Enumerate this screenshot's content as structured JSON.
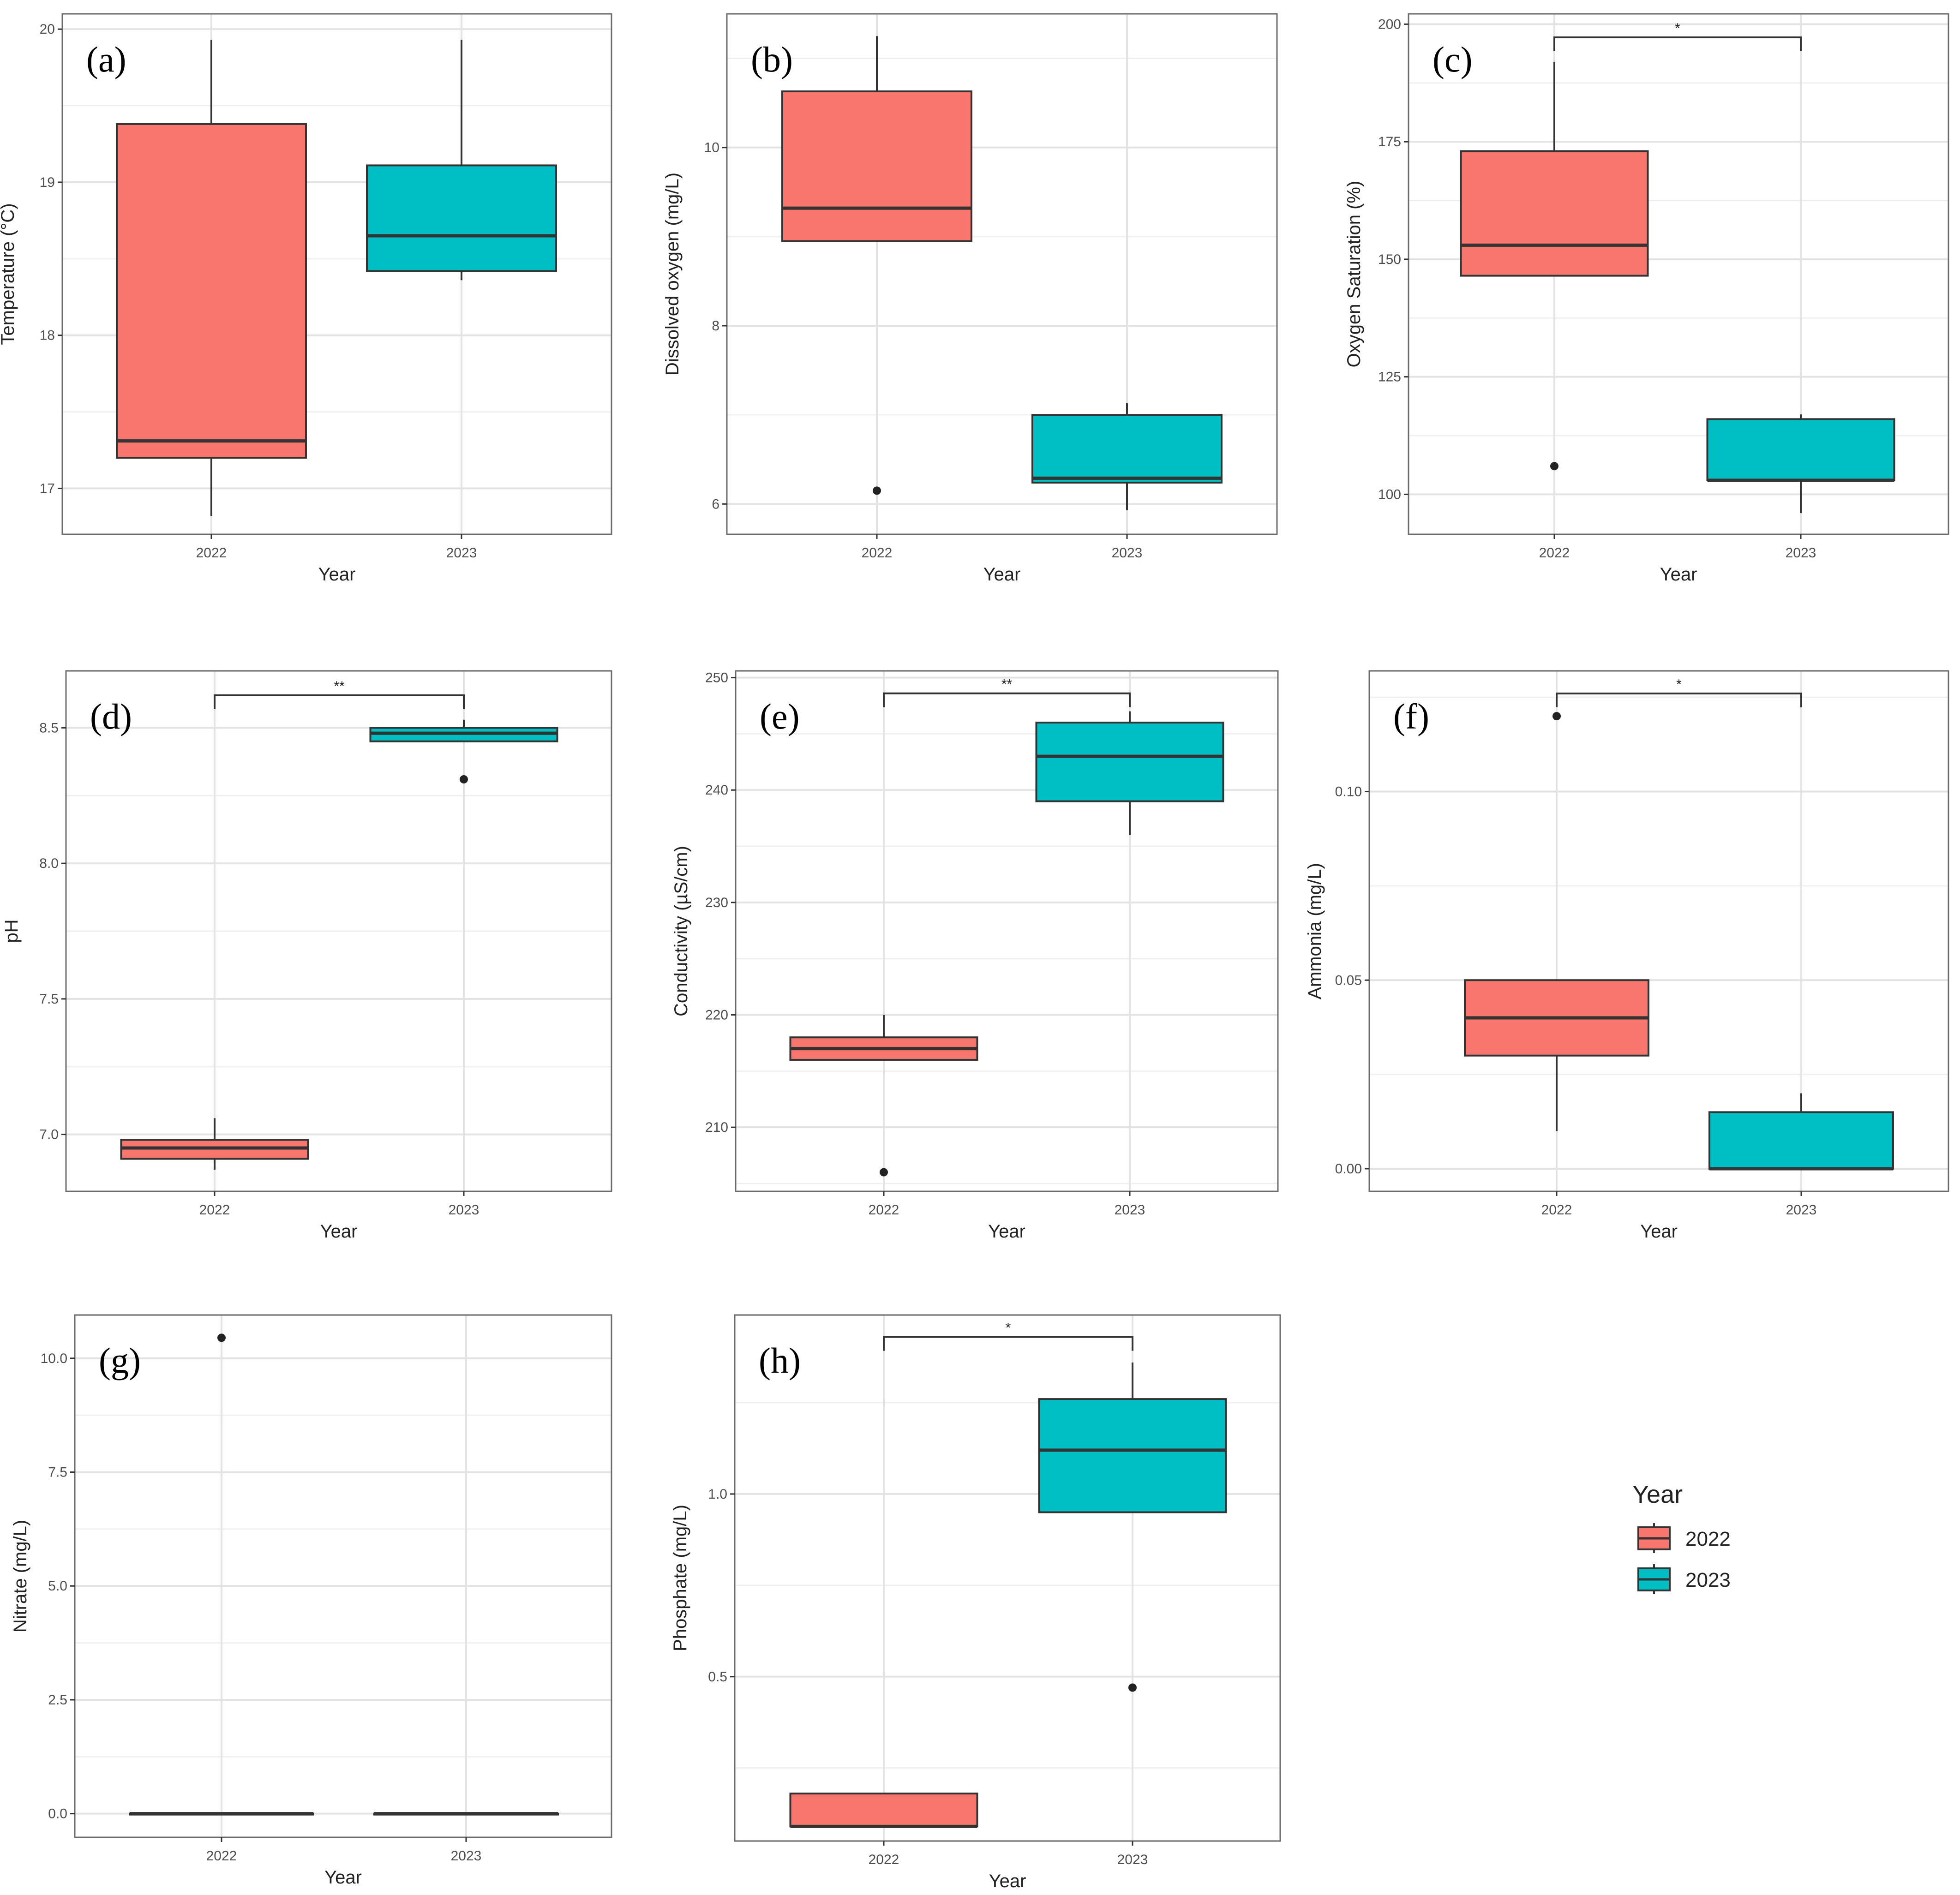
{
  "legend": {
    "title": "Year",
    "items": [
      {
        "label": "2022",
        "color": "#F8766D"
      },
      {
        "label": "2023",
        "color": "#00BFC4"
      }
    ]
  },
  "chart_data": [
    {
      "type": "box",
      "panel_label": "(a)",
      "xlabel": "Year",
      "ylabel": "Temperature (°C)",
      "categories": [
        "2022",
        "2023"
      ],
      "ylim": [
        16.7,
        20.1
      ],
      "yticks": [
        17,
        18,
        19,
        20
      ],
      "boxes": [
        {
          "category": "2022",
          "whisker_low": 16.82,
          "q1": 17.2,
          "median": 17.31,
          "q3": 19.38,
          "whisker_high": 19.93,
          "outliers": [],
          "color": "#F8766D"
        },
        {
          "category": "2023",
          "whisker_low": 18.36,
          "q1": 18.42,
          "median": 18.65,
          "q3": 19.11,
          "whisker_high": 19.93,
          "outliers": [],
          "color": "#00BFC4"
        }
      ],
      "significance": null
    },
    {
      "type": "box",
      "panel_label": "(b)",
      "xlabel": "Year",
      "ylabel": "Dissolved oxygen (mg/L)",
      "categories": [
        "2022",
        "2023"
      ],
      "ylim": [
        5.66,
        11.5
      ],
      "yticks": [
        6,
        8,
        10
      ],
      "boxes": [
        {
          "category": "2022",
          "whisker_low": 8.95,
          "q1": 8.95,
          "median": 9.32,
          "q3": 10.63,
          "whisker_high": 11.25,
          "outliers": [
            6.15
          ],
          "color": "#F8766D"
        },
        {
          "category": "2023",
          "whisker_low": 5.93,
          "q1": 6.24,
          "median": 6.29,
          "q3": 7.0,
          "whisker_high": 7.13,
          "outliers": [],
          "color": "#00BFC4"
        }
      ],
      "significance": null
    },
    {
      "type": "box",
      "panel_label": "(c)",
      "xlabel": "Year",
      "ylabel": "Oxygen Saturation (%)",
      "categories": [
        "2022",
        "2023"
      ],
      "ylim": [
        91.5,
        202.2
      ],
      "yticks": [
        100,
        125,
        150,
        175,
        200
      ],
      "boxes": [
        {
          "category": "2022",
          "whisker_low": 146.5,
          "q1": 146.5,
          "median": 153,
          "q3": 173,
          "whisker_high": 192,
          "outliers": [
            106
          ],
          "color": "#F8766D"
        },
        {
          "category": "2023",
          "whisker_low": 96,
          "q1": 103,
          "median": 103,
          "q3": 116,
          "whisker_high": 117,
          "outliers": [],
          "color": "#00BFC4"
        }
      ],
      "significance": {
        "label": "*",
        "y": 197.2
      }
    },
    {
      "type": "box",
      "panel_label": "(d)",
      "xlabel": "Year",
      "ylabel": "pH",
      "categories": [
        "2022",
        "2023"
      ],
      "ylim": [
        6.79,
        8.71
      ],
      "yticks": [
        7.0,
        7.5,
        8.0,
        8.5
      ],
      "yticklabels": [
        "7.0",
        "7.5",
        "8.0",
        "8.5"
      ],
      "boxes": [
        {
          "category": "2022",
          "whisker_low": 6.87,
          "q1": 6.91,
          "median": 6.95,
          "q3": 6.98,
          "whisker_high": 7.06,
          "outliers": [],
          "color": "#F8766D"
        },
        {
          "category": "2023",
          "whisker_low": 8.45,
          "q1": 8.45,
          "median": 8.48,
          "q3": 8.5,
          "whisker_high": 8.53,
          "outliers": [
            8.31
          ],
          "color": "#00BFC4"
        }
      ],
      "significance": {
        "label": "**",
        "y": 8.62
      }
    },
    {
      "type": "box",
      "panel_label": "(e)",
      "xlabel": "Year",
      "ylabel": "Conductivity (µS/cm)",
      "categories": [
        "2022",
        "2023"
      ],
      "ylim": [
        204.3,
        250.6
      ],
      "yticks": [
        210,
        220,
        230,
        240,
        250
      ],
      "boxes": [
        {
          "category": "2022",
          "whisker_low": 216,
          "q1": 216,
          "median": 217,
          "q3": 218,
          "whisker_high": 220,
          "outliers": [
            206
          ],
          "color": "#F8766D"
        },
        {
          "category": "2023",
          "whisker_low": 236,
          "q1": 239,
          "median": 243,
          "q3": 246,
          "whisker_high": 247,
          "outliers": [],
          "color": "#00BFC4"
        }
      ],
      "significance": {
        "label": "**",
        "y": 248.6
      }
    },
    {
      "type": "box",
      "panel_label": "(f)",
      "xlabel": "Year",
      "ylabel": "Ammonia (mg/L)",
      "categories": [
        "2022",
        "2023"
      ],
      "ylim": [
        -0.006,
        0.132
      ],
      "yticks": [
        0.0,
        0.05,
        0.1
      ],
      "yticklabels": [
        "0.00",
        "0.05",
        "0.10"
      ],
      "boxes": [
        {
          "category": "2022",
          "whisker_low": 0.01,
          "q1": 0.03,
          "median": 0.04,
          "q3": 0.05,
          "whisker_high": 0.05,
          "outliers": [
            0.12
          ],
          "color": "#F8766D"
        },
        {
          "category": "2023",
          "whisker_low": 0.0,
          "q1": 0.0,
          "median": 0.0,
          "q3": 0.015,
          "whisker_high": 0.02,
          "outliers": [],
          "color": "#00BFC4"
        }
      ],
      "significance": {
        "label": "*",
        "y": 0.126
      }
    },
    {
      "type": "box",
      "panel_label": "(g)",
      "xlabel": "Year",
      "ylabel": "Nitrate (mg/L)",
      "categories": [
        "2022",
        "2023"
      ],
      "ylim": [
        -0.52,
        10.95
      ],
      "yticks": [
        0.0,
        2.5,
        5.0,
        7.5,
        10.0
      ],
      "yticklabels": [
        "0.0",
        "2.5",
        "5.0",
        "7.5",
        "10.0"
      ],
      "boxes": [
        {
          "category": "2022",
          "whisker_low": 0,
          "q1": 0,
          "median": 0,
          "q3": 0,
          "whisker_high": 0,
          "outliers": [
            10.45
          ],
          "color": "#F8766D"
        },
        {
          "category": "2023",
          "whisker_low": 0,
          "q1": 0,
          "median": 0,
          "q3": 0,
          "whisker_high": 0,
          "outliers": [],
          "color": "#00BFC4"
        }
      ],
      "significance": null
    },
    {
      "type": "box",
      "panel_label": "(h)",
      "xlabel": "Year",
      "ylabel": "Phosphate (mg/L)",
      "categories": [
        "2022",
        "2023"
      ],
      "ylim": [
        0.05,
        1.49
      ],
      "yticks": [
        0.5,
        1.0
      ],
      "yticklabels": [
        "0.5",
        "1.0"
      ],
      "boxes": [
        {
          "category": "2022",
          "whisker_low": 0.09,
          "q1": 0.09,
          "median": 0.09,
          "q3": 0.18,
          "whisker_high": 0.18,
          "outliers": [],
          "color": "#F8766D"
        },
        {
          "category": "2023",
          "whisker_low": 0.95,
          "q1": 0.95,
          "median": 1.12,
          "q3": 1.26,
          "whisker_high": 1.36,
          "outliers": [
            0.47
          ],
          "color": "#00BFC4"
        }
      ],
      "significance": {
        "label": "*",
        "y": 1.43
      }
    }
  ]
}
